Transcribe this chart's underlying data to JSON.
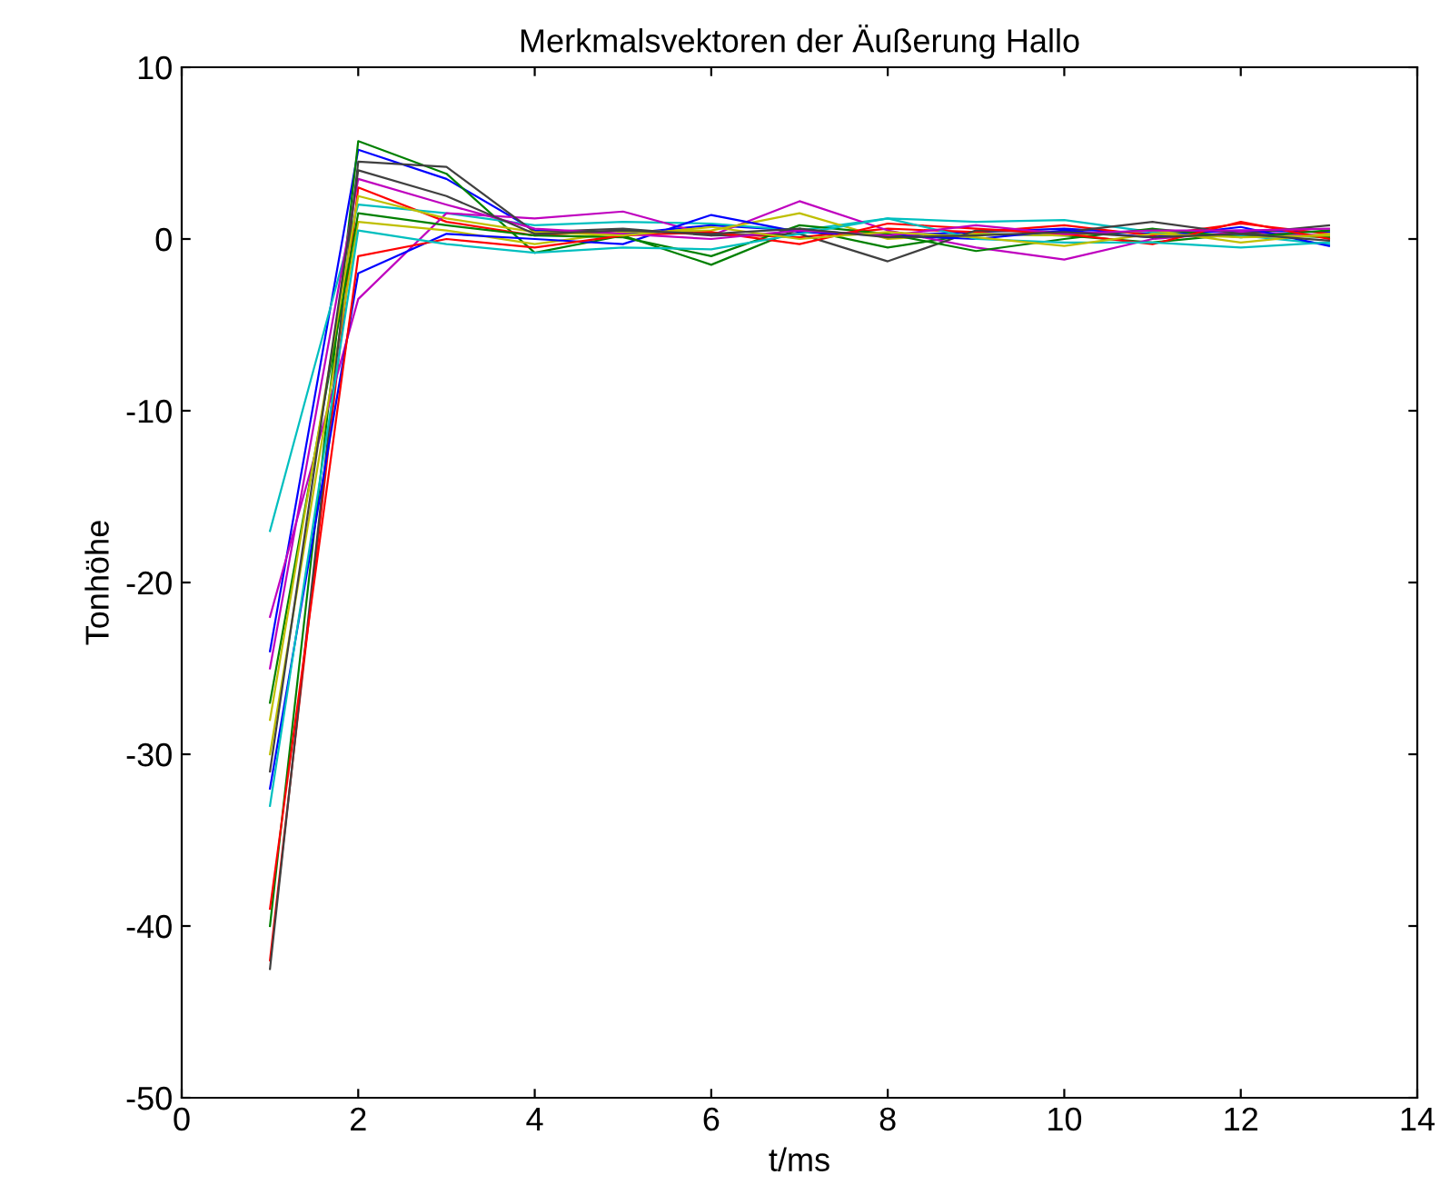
{
  "chart_data": {
    "type": "line",
    "title": "Merkmalsvektoren der Äußerung Hallo",
    "xlabel": "t/ms",
    "ylabel": "Tonhöhe",
    "x": [
      1,
      2,
      3,
      4,
      5,
      6,
      7,
      8,
      9,
      10,
      11,
      12,
      13
    ],
    "xlim": [
      0,
      14
    ],
    "xticks": [
      0,
      2,
      4,
      6,
      8,
      10,
      12,
      14
    ],
    "ylim": [
      -50,
      10
    ],
    "yticks": [
      -50,
      -40,
      -30,
      -20,
      -10,
      0,
      10
    ],
    "grid": false,
    "legend": false,
    "line_style": "solid",
    "marker": "none",
    "series": [
      {
        "color": "#0000ff",
        "values": [
          -24,
          5.2,
          3.5,
          0.5,
          0.3,
          0.8,
          0.5,
          0.2,
          0.4,
          0.6,
          0.3,
          0.5,
          0.4
        ]
      },
      {
        "color": "#008000",
        "values": [
          -40,
          5.7,
          3.8,
          -0.8,
          0.2,
          -1.5,
          0.6,
          -0.5,
          0.3,
          0.2,
          -0.2,
          0.3,
          0.1
        ]
      },
      {
        "color": "#ff0000",
        "values": [
          -42,
          3.0,
          1.0,
          0.2,
          0.5,
          0.3,
          0.1,
          0.6,
          0.4,
          0.8,
          0.2,
          0.9,
          0.3
        ]
      },
      {
        "color": "#00bfbf",
        "values": [
          -17,
          2.0,
          1.5,
          0.8,
          1.0,
          0.9,
          0.5,
          1.2,
          1.0,
          1.1,
          0.4,
          0.2,
          -0.3
        ]
      },
      {
        "color": "#bf00bf",
        "values": [
          -22,
          -3.5,
          1.5,
          1.2,
          1.6,
          0.2,
          2.2,
          0.5,
          -0.5,
          -1.2,
          0.0,
          0.4,
          0.2
        ]
      },
      {
        "color": "#bfbf00",
        "values": [
          -30,
          1.0,
          0.5,
          -0.3,
          0.4,
          0.5,
          1.5,
          0.0,
          0.3,
          0.2,
          0.5,
          -0.2,
          0.3
        ]
      },
      {
        "color": "#404040",
        "values": [
          -42.5,
          4.5,
          4.2,
          0.4,
          0.6,
          0.2,
          0.3,
          -1.3,
          0.5,
          0.4,
          1.0,
          0.3,
          0.8
        ]
      },
      {
        "color": "#0000ff",
        "values": [
          -32,
          -2.0,
          0.3,
          0.0,
          -0.3,
          1.4,
          0.4,
          0.2,
          0.0,
          0.5,
          0.1,
          0.7,
          -0.4
        ]
      },
      {
        "color": "#008000",
        "values": [
          -27,
          1.5,
          0.8,
          0.2,
          0.1,
          -1.0,
          0.8,
          0.3,
          -0.7,
          0.0,
          0.6,
          0.1,
          0.5
        ]
      },
      {
        "color": "#ff0000",
        "values": [
          -39,
          -1.0,
          0.0,
          -0.5,
          0.2,
          0.4,
          -0.3,
          0.9,
          0.6,
          0.3,
          -0.3,
          1.0,
          0.0
        ]
      },
      {
        "color": "#00bfbf",
        "values": [
          -33,
          0.5,
          -0.3,
          -0.8,
          -0.5,
          -0.6,
          0.3,
          1.2,
          0.0,
          -0.2,
          -0.2,
          -0.5,
          -0.2
        ]
      },
      {
        "color": "#bf00bf",
        "values": [
          -25,
          3.5,
          2.0,
          0.6,
          0.3,
          0.0,
          0.5,
          0.2,
          0.8,
          0.3,
          0.5,
          0.5,
          0.6
        ]
      },
      {
        "color": "#bfbf00",
        "values": [
          -28,
          2.5,
          1.2,
          0.4,
          0.2,
          0.7,
          0.0,
          0.4,
          0.1,
          -0.4,
          0.3,
          0.1,
          0.2
        ]
      },
      {
        "color": "#404040",
        "values": [
          -31,
          4.0,
          2.5,
          0.3,
          0.5,
          0.3,
          0.6,
          0.1,
          0.2,
          0.4,
          0.1,
          0.3,
          -0.1
        ]
      }
    ]
  }
}
